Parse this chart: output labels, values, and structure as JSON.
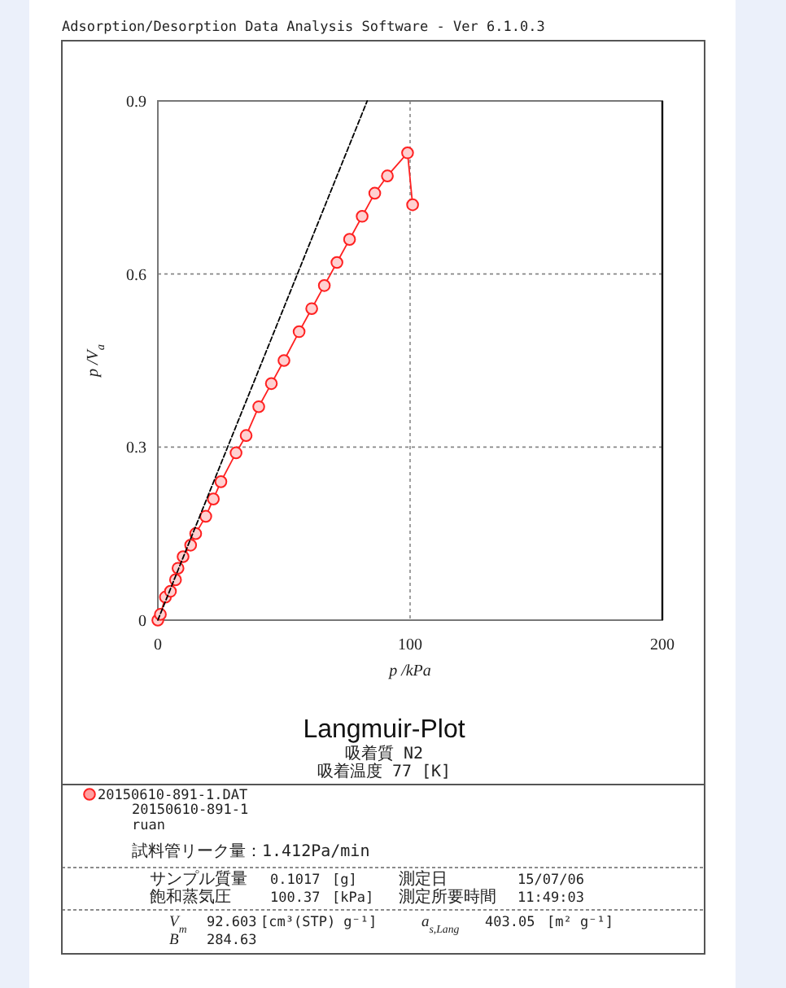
{
  "chart_data": {
    "type": "line",
    "title": "Langmuir-Plot",
    "subtitle": "吸着質 N2",
    "xlabel": "p /kPa",
    "ylabel": "p /V$_{a}$",
    "annotations": [
      "Adsorption/Desorption Data Analysis Software - Ver 6.1.0.3",
      "吸着温度 77 [K]",
      "20150610-891-1",
      "ruan",
      "試料管リーク量：1.412Pa/min",
      "サンプル質量",
      "0.1017",
      "[g]",
      "測定日",
      "15/07/06",
      "飽和蒸気圧",
      "100.37",
      "[kPa]",
      "測定所要時間",
      "11:49:03",
      "V$_{m}$",
      "92.603",
      "[cm³(STP) g⁻¹]",
      "a$_{s,Lang}$",
      "403.05",
      "[m² g⁻¹]",
      "B",
      "284.63"
    ],
    "series": [
      {
        "name": "20150610-891-1.DAT",
        "color": "#ff2020",
        "marker": "circle",
        "line_style": "solid",
        "x": [
          0,
          1,
          3,
          5,
          7,
          8,
          10,
          13,
          15,
          19,
          22,
          25,
          31,
          35,
          40,
          45,
          50,
          56,
          61,
          66,
          71,
          76,
          81,
          86,
          91,
          99,
          101
        ],
        "values": [
          0,
          0.01,
          0.04,
          0.05,
          0.07,
          0.09,
          0.11,
          0.13,
          0.15,
          0.18,
          0.21,
          0.24,
          0.29,
          0.32,
          0.37,
          0.41,
          0.45,
          0.5,
          0.54,
          0.58,
          0.62,
          0.66,
          0.7,
          0.74,
          0.77,
          0.81,
          0.72
        ]
      },
      {
        "color": "#000000",
        "marker": "none",
        "line_style": "dashed",
        "x": [
          0,
          83
        ],
        "values": [
          0,
          0.9
        ]
      }
    ],
    "xlim": [
      0,
      200
    ],
    "ylim": [
      0,
      0.9
    ],
    "xticks": [
      0,
      100,
      200
    ],
    "yticks": [
      0,
      0.3,
      0.6,
      0.9
    ],
    "grid": true,
    "legend": "bottom left"
  }
}
